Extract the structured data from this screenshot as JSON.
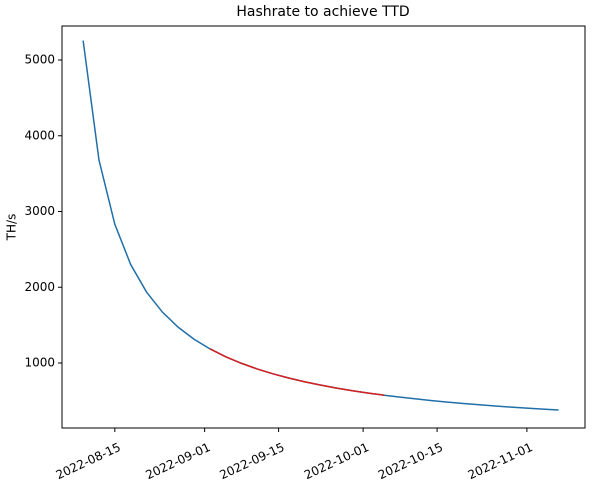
{
  "chart_data": {
    "type": "line",
    "title": "Hashrate to achieve TTD",
    "y_label": "TH/s",
    "x": [
      "2022-08-09",
      "2022-08-12",
      "2022-08-15",
      "2022-08-18",
      "2022-08-21",
      "2022-08-24",
      "2022-08-27",
      "2022-08-30",
      "2022-09-02",
      "2022-09-05",
      "2022-09-08",
      "2022-09-11",
      "2022-09-14",
      "2022-09-17",
      "2022-09-20",
      "2022-09-23",
      "2022-09-26",
      "2022-09-29",
      "2022-10-02",
      "2022-10-05",
      "2022-10-08",
      "2022-10-11",
      "2022-10-14",
      "2022-10-17",
      "2022-10-20",
      "2022-10-23",
      "2022-10-26",
      "2022-10-29",
      "2022-11-01",
      "2022-11-04",
      "2022-11-07"
    ],
    "series": [
      {
        "color": "#1f6fa8",
        "values": [
          5257,
          3680,
          2831,
          2300,
          1937,
          1673,
          1472,
          1314,
          1187,
          1082,
          995,
          920,
          856,
          800,
          751,
          708,
          669,
          634,
          603,
          575,
          549,
          526,
          504,
          484,
          466,
          449,
          433,
          418,
          404,
          391,
          379
        ]
      },
      {
        "color": "#d62020",
        "values": [
          null,
          null,
          null,
          null,
          null,
          null,
          null,
          null,
          1187,
          1082,
          995,
          920,
          856,
          800,
          751,
          708,
          669,
          634,
          603,
          575,
          null,
          null,
          null,
          null,
          null,
          null,
          null,
          null,
          null,
          null,
          null
        ]
      }
    ],
    "xlim": [
      "2022-08-05",
      "2022-11-12"
    ],
    "xticks": [
      "2022-08-15",
      "2022-09-01",
      "2022-09-15",
      "2022-10-01",
      "2022-10-15",
      "2022-11-01"
    ],
    "ylim": [
      142,
      5449
    ],
    "yticks": [
      1000,
      2000,
      3000,
      4000,
      5000
    ],
    "grid": false
  }
}
